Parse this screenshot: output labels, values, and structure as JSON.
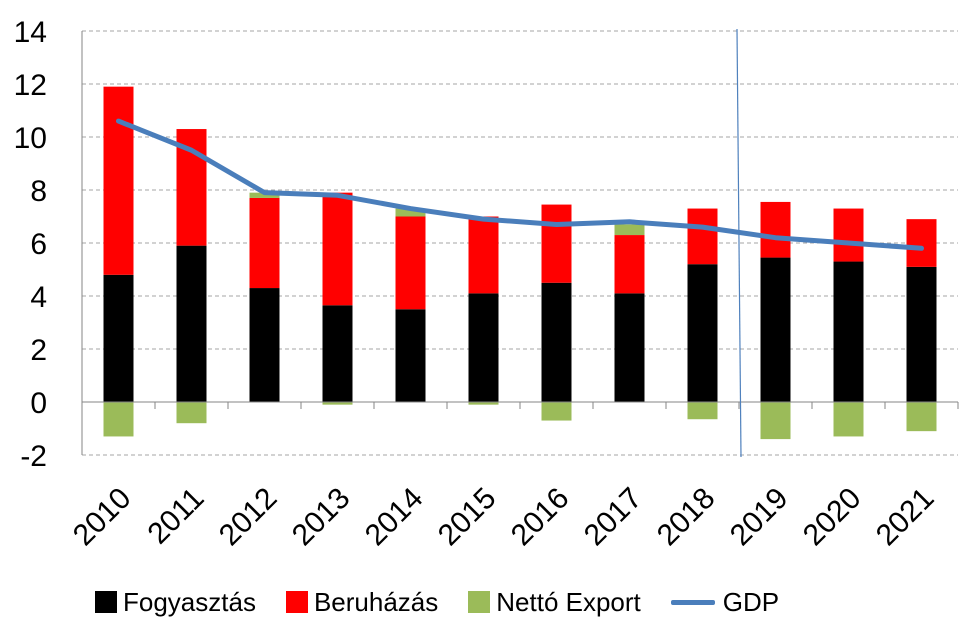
{
  "chart_data": {
    "type": "bar",
    "categories": [
      "2010",
      "2011",
      "2012",
      "2013",
      "2014",
      "2015",
      "2016",
      "2017",
      "2018",
      "2019",
      "2020",
      "2021"
    ],
    "series": [
      {
        "name": "Fogyasztás",
        "kind": "stacked-bar",
        "color": "#000000",
        "values": [
          4.8,
          5.9,
          4.3,
          3.65,
          3.5,
          4.1,
          4.5,
          4.1,
          5.2,
          5.45,
          5.3,
          5.1
        ]
      },
      {
        "name": "Beruházás",
        "kind": "stacked-bar",
        "color": "#ff0000",
        "values": [
          7.1,
          4.4,
          3.4,
          4.25,
          3.5,
          2.9,
          2.95,
          2.2,
          2.1,
          2.1,
          2.0,
          1.8
        ]
      },
      {
        "name": "Nettó Export",
        "kind": "stacked-bar",
        "color": "#9bbb59",
        "values": [
          -1.3,
          -0.8,
          0.2,
          -0.1,
          0.3,
          -0.1,
          -0.7,
          0.4,
          -0.65,
          -1.4,
          -1.3,
          -1.1
        ]
      },
      {
        "name": "GDP",
        "kind": "line",
        "color": "#4a7ebb",
        "values": [
          10.6,
          9.5,
          7.9,
          7.8,
          7.3,
          6.9,
          6.7,
          6.8,
          6.6,
          6.2,
          6.0,
          5.8
        ]
      }
    ],
    "yticks": [
      14,
      12,
      10,
      8,
      6,
      4,
      2,
      0,
      -2
    ],
    "ylim": [
      -2,
      14
    ],
    "grid": true,
    "legend": "bottom",
    "divider_after_category": "2018"
  }
}
